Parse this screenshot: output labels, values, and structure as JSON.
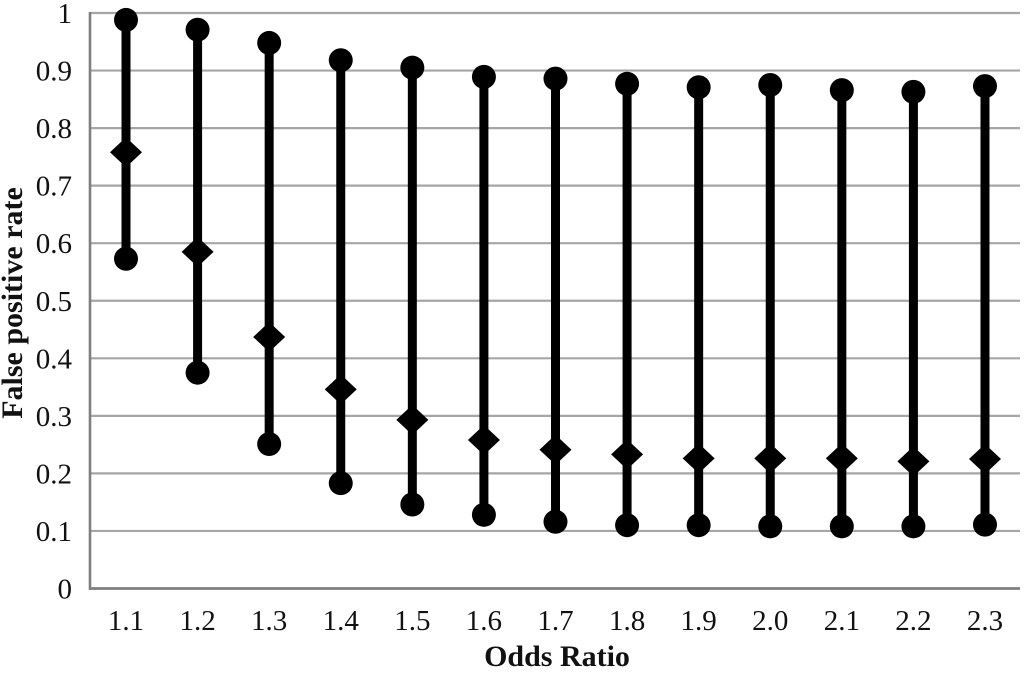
{
  "chart_data": {
    "type": "scatter",
    "subtype": "vertical-range-plot-with-median",
    "title": "",
    "xlabel": "Odds Ratio",
    "ylabel": "False positive rate",
    "x": [
      1.1,
      1.2,
      1.3,
      1.4,
      1.5,
      1.6,
      1.7,
      1.8,
      1.9,
      2.0,
      2.1,
      2.2,
      2.3
    ],
    "x_labels": [
      "1.1",
      "1.2",
      "1.3",
      "1.4",
      "1.5",
      "1.6",
      "1.7",
      "1.8",
      "1.9",
      "2.0",
      "2.1",
      "2.2",
      "2.3"
    ],
    "series": [
      {
        "name": "upper bound",
        "marker": "circle",
        "values": [
          0.988,
          0.971,
          0.948,
          0.918,
          0.905,
          0.889,
          0.886,
          0.877,
          0.871,
          0.875,
          0.866,
          0.863,
          0.873
        ]
      },
      {
        "name": "median",
        "marker": "diamond",
        "values": [
          0.758,
          0.585,
          0.437,
          0.346,
          0.293,
          0.258,
          0.241,
          0.233,
          0.226,
          0.226,
          0.226,
          0.221,
          0.225
        ]
      },
      {
        "name": "lower bound",
        "marker": "circle",
        "values": [
          0.573,
          0.375,
          0.251,
          0.183,
          0.146,
          0.128,
          0.116,
          0.11,
          0.11,
          0.108,
          0.108,
          0.108,
          0.111
        ]
      }
    ],
    "ylim": [
      0,
      1
    ],
    "yticks": [
      0,
      0.1,
      0.2,
      0.3,
      0.4,
      0.5,
      0.6,
      0.7,
      0.8,
      0.9,
      1
    ],
    "ytick_labels": [
      "0",
      "0.1",
      "0.2",
      "0.3",
      "0.4",
      "0.5",
      "0.6",
      "0.7",
      "0.8",
      "0.9",
      "1"
    ],
    "grid": true,
    "legend": "none",
    "marker_color": "#000000",
    "gridline_color": "#a6a6a6",
    "axis_color": "#7f7f7f",
    "background_color": "#ffffff"
  }
}
